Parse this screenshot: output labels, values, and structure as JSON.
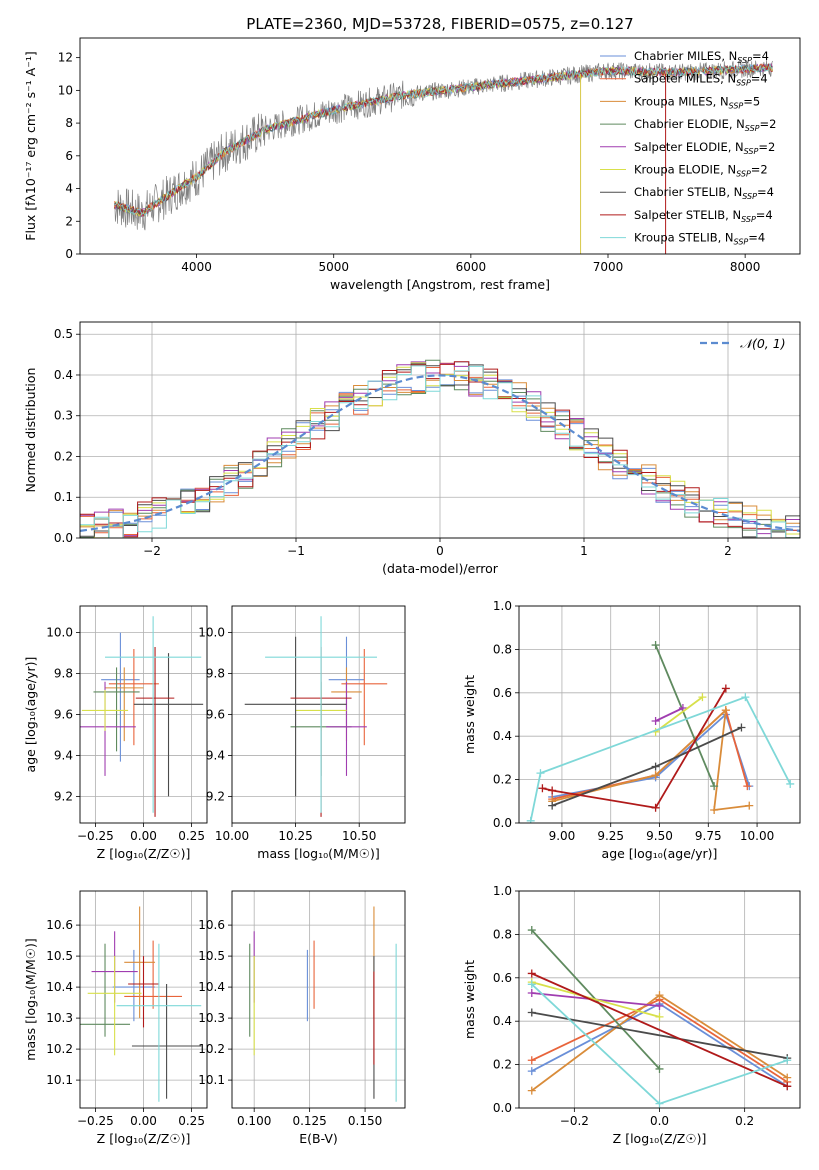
{
  "figure_title": "PLATE=2360, MJD=53728, FIBERID=0575, z=0.127",
  "model_colors": [
    "#6a8fd8",
    "#e8643b",
    "#d98c3a",
    "#5f8a5f",
    "#a03db0",
    "#d8e04a",
    "#4b4b4b",
    "#b01a1a",
    "#7fd8d8"
  ],
  "chart_data": [
    {
      "id": "spectrum",
      "type": "line",
      "xlabel": "wavelength [Angstrom, rest frame]",
      "ylabel": "Flux [fλ10⁻¹⁷ erg cm⁻² s⁻¹ A⁻¹]",
      "xlim": [
        3150,
        8400
      ],
      "ylim": [
        0,
        13.2
      ],
      "xticks": [
        4000,
        5000,
        6000,
        7000,
        8000
      ],
      "yticks": [
        0,
        2,
        4,
        6,
        8,
        10,
        12
      ],
      "grid": false,
      "legend_position": "top-right",
      "legend": [
        "Chabrier MILES, N_SSP=4",
        "Salpeter MILES, N_SSP=4",
        "Kroupa MILES, N_SSP=5",
        "Chabrier ELODIE, N_SSP=2",
        "Salpeter ELODIE, N_SSP=2",
        "Kroupa ELODIE, N_SSP=2",
        "Chabrier STELIB, N_SSP=4",
        "Salpeter STELIB, N_SSP=4",
        "Kroupa STELIB, N_SSP=4"
      ],
      "continuum_x": [
        3400,
        3600,
        3800,
        3900,
        4000,
        4200,
        4500,
        5000,
        5500,
        6000,
        6500,
        7000,
        7500,
        8000,
        8200
      ],
      "continuum_y": [
        3.0,
        2.5,
        3.6,
        4.2,
        4.7,
        6.2,
        7.6,
        8.8,
        9.7,
        10.2,
        10.7,
        11.2,
        11.1,
        11.3,
        11.4
      ]
    },
    {
      "id": "residuals",
      "type": "histogram",
      "xlabel": "(data-model)/error",
      "ylabel": "Normed distribution",
      "xlim": [
        -2.5,
        2.5
      ],
      "ylim": [
        0,
        0.53
      ],
      "xticks": [
        -2,
        -1,
        0,
        1,
        2
      ],
      "yticks": [
        0.0,
        0.1,
        0.2,
        0.3,
        0.4,
        0.5
      ],
      "grid": true,
      "legend_position": "top-right",
      "legend": [
        "𝒩(0, 1)"
      ],
      "bin_width": 0.1
    },
    {
      "id": "age-vs-Z",
      "type": "errorbar",
      "xlabel": "Z [log₁₀(Z/Z☉)]",
      "ylabel": "age  [log₁₀(age/yr)]",
      "xlim": [
        -0.33,
        0.33
      ],
      "ylim": [
        9.07,
        10.13
      ],
      "xticks": [
        -0.25,
        0.0,
        0.25
      ],
      "yticks": [
        9.2,
        9.4,
        9.6,
        9.8,
        10.0
      ],
      "points": [
        {
          "x": -0.12,
          "y": 9.77,
          "xerr": 0.1,
          "y0": 9.37,
          "y1": 10.0
        },
        {
          "x": -0.05,
          "y": 9.75,
          "xerr": 0.13,
          "y0": 9.45,
          "y1": 9.92
        },
        {
          "x": -0.1,
          "y": 9.73,
          "xerr": 0.1,
          "y0": 9.47,
          "y1": 9.83
        },
        {
          "x": -0.14,
          "y": 9.71,
          "xerr": 0.12,
          "y0": 9.42,
          "y1": 9.83
        },
        {
          "x": -0.2,
          "y": 9.54,
          "xerr": 0.16,
          "y0": 9.3,
          "y1": 9.76
        },
        {
          "x": -0.2,
          "y": 9.62,
          "xerr": 0.12,
          "y0": 9.52,
          "y1": 9.72
        },
        {
          "x": 0.13,
          "y": 9.65,
          "xerr": 0.18,
          "y0": 9.2,
          "y1": 9.9
        },
        {
          "x": 0.06,
          "y": 9.68,
          "xerr": 0.1,
          "y0": 9.1,
          "y1": 9.93
        },
        {
          "x": 0.05,
          "y": 9.88,
          "xerr": 0.25,
          "y0": 9.12,
          "y1": 10.08
        }
      ]
    },
    {
      "id": "age-vs-mass",
      "type": "errorbar",
      "xlabel": "mass [log₁₀(M/M☉)]",
      "ylabel": "",
      "xlim": [
        10.0,
        10.68
      ],
      "ylim": [
        9.07,
        10.13
      ],
      "xticks": [
        10.0,
        10.25,
        10.5
      ],
      "yticks": [
        9.2,
        9.4,
        9.6,
        9.8,
        10.0
      ],
      "points": [
        {
          "x": 10.45,
          "y": 9.77,
          "xerr": 0.07,
          "y0": 9.55,
          "y1": 9.98
        },
        {
          "x": 10.52,
          "y": 9.75,
          "xerr": 0.09,
          "y0": 9.45,
          "y1": 9.92
        },
        {
          "x": 10.45,
          "y": 9.71,
          "xerr": 0.06,
          "y0": 9.47,
          "y1": 9.83
        },
        {
          "x": 10.35,
          "y": 9.54,
          "xerr": 0.12,
          "y0": 9.3,
          "y1": 9.76
        },
        {
          "x": 10.45,
          "y": 9.54,
          "xerr": 0.08,
          "y0": 9.3,
          "y1": 9.76
        },
        {
          "x": 10.35,
          "y": 9.62,
          "xerr": 0.1,
          "y0": 9.52,
          "y1": 9.72
        },
        {
          "x": 10.25,
          "y": 9.65,
          "xerr": 0.2,
          "y0": 9.2,
          "y1": 9.98
        },
        {
          "x": 10.35,
          "y": 9.68,
          "xerr": 0.12,
          "y0": 9.1,
          "y1": 9.93
        },
        {
          "x": 10.35,
          "y": 9.88,
          "xerr": 0.22,
          "y0": 9.12,
          "y1": 10.08
        }
      ]
    },
    {
      "id": "mass-weight-vs-age",
      "type": "line",
      "xlabel": "age  [log₁₀(age/yr)]",
      "ylabel": "mass weight",
      "xlim": [
        8.78,
        10.22
      ],
      "ylim": [
        0.0,
        1.0
      ],
      "xticks": [
        9.0,
        9.25,
        9.5,
        9.75,
        10.0
      ],
      "yticks": [
        0.0,
        0.2,
        0.4,
        0.6,
        0.8,
        1.0
      ],
      "grid": true,
      "series": [
        {
          "x": [
            8.95,
            9.48,
            9.84,
            9.96
          ],
          "y": [
            0.12,
            0.21,
            0.5,
            0.17
          ]
        },
        {
          "x": [
            8.95,
            9.48,
            9.84,
            9.95
          ],
          "y": [
            0.11,
            0.22,
            0.52,
            0.17
          ]
        },
        {
          "x": [
            8.95,
            9.48,
            9.84,
            9.78,
            9.96
          ],
          "y": [
            0.1,
            0.22,
            0.52,
            0.06,
            0.08
          ]
        },
        {
          "x": [
            9.48,
            9.78
          ],
          "y": [
            0.82,
            0.17
          ]
        },
        {
          "x": [
            9.48,
            9.62
          ],
          "y": [
            0.47,
            0.53
          ]
        },
        {
          "x": [
            9.48,
            9.72
          ],
          "y": [
            0.42,
            0.58
          ]
        },
        {
          "x": [
            8.95,
            9.48,
            9.92
          ],
          "y": [
            0.08,
            0.26,
            0.44
          ]
        },
        {
          "x": [
            8.9,
            8.95,
            9.48,
            9.84
          ],
          "y": [
            0.16,
            0.15,
            0.07,
            0.62
          ]
        },
        {
          "x": [
            8.84,
            8.89,
            9.94,
            10.17
          ],
          "y": [
            0.01,
            0.23,
            0.58,
            0.18
          ]
        }
      ]
    },
    {
      "id": "mass-vs-Z",
      "type": "errorbar",
      "xlabel": "Z [log₁₀(Z/Z☉)]",
      "ylabel": "mass [log₁₀(M/M☉)]",
      "xlim": [
        -0.33,
        0.33
      ],
      "ylim": [
        10.01,
        10.71
      ],
      "xticks": [
        -0.25,
        0.0,
        0.25
      ],
      "yticks": [
        10.1,
        10.2,
        10.3,
        10.4,
        10.5,
        10.6
      ],
      "points": [
        {
          "x": -0.05,
          "y": 10.4,
          "xerr": 0.11,
          "y0": 10.29,
          "y1": 10.52
        },
        {
          "x": 0.05,
          "y": 10.37,
          "xerr": 0.15,
          "y0": 10.33,
          "y1": 10.55
        },
        {
          "x": -0.02,
          "y": 10.48,
          "xerr": 0.08,
          "y0": 10.3,
          "y1": 10.66
        },
        {
          "x": -0.2,
          "y": 10.28,
          "xerr": 0.13,
          "y0": 10.24,
          "y1": 10.54
        },
        {
          "x": -0.15,
          "y": 10.45,
          "xerr": 0.12,
          "y0": 10.35,
          "y1": 10.58
        },
        {
          "x": -0.15,
          "y": 10.38,
          "xerr": 0.14,
          "y0": 10.18,
          "y1": 10.5
        },
        {
          "x": 0.12,
          "y": 10.21,
          "xerr": 0.18,
          "y0": 10.04,
          "y1": 10.41
        },
        {
          "x": 0.0,
          "y": 10.41,
          "xerr": 0.08,
          "y0": 10.27,
          "y1": 10.5
        },
        {
          "x": 0.08,
          "y": 10.34,
          "xerr": 0.22,
          "y0": 10.03,
          "y1": 10.54
        }
      ]
    },
    {
      "id": "mass-vs-EBV",
      "type": "errorbar",
      "xlabel": "E(B-V)",
      "ylabel": "",
      "xlim": [
        0.09,
        0.168
      ],
      "ylim": [
        10.01,
        10.71
      ],
      "xticks": [
        0.1,
        0.125,
        0.15
      ],
      "yticks": [
        10.1,
        10.2,
        10.3,
        10.4,
        10.5,
        10.6
      ],
      "points": [
        {
          "x": 0.124,
          "y0": 10.29,
          "y1": 10.52
        },
        {
          "x": 0.127,
          "y0": 10.33,
          "y1": 10.55
        },
        {
          "x": 0.154,
          "y0": 10.3,
          "y1": 10.66
        },
        {
          "x": 0.098,
          "y0": 10.24,
          "y1": 10.54
        },
        {
          "x": 0.1,
          "y0": 10.35,
          "y1": 10.58
        },
        {
          "x": 0.1,
          "y0": 10.18,
          "y1": 10.5
        },
        {
          "x": 0.154,
          "y0": 10.04,
          "y1": 10.5
        },
        {
          "x": 0.154,
          "y0": 10.15,
          "y1": 10.45
        },
        {
          "x": 0.164,
          "y0": 10.03,
          "y1": 10.54
        }
      ]
    },
    {
      "id": "mass-weight-vs-Z",
      "type": "line",
      "xlabel": "Z [log₁₀(Z/Z☉)]",
      "ylabel": "mass weight",
      "xlim": [
        -0.33,
        0.33
      ],
      "ylim": [
        0.0,
        1.0
      ],
      "xticks": [
        -0.2,
        0.0,
        0.2
      ],
      "yticks": [
        0.0,
        0.2,
        0.4,
        0.6,
        0.8,
        1.0
      ],
      "grid": true,
      "series": [
        {
          "x": [
            -0.3,
            0.0,
            0.3
          ],
          "y": [
            0.17,
            0.48,
            0.1
          ]
        },
        {
          "x": [
            -0.3,
            0.0,
            0.3
          ],
          "y": [
            0.22,
            0.5,
            0.12
          ]
        },
        {
          "x": [
            -0.3,
            0.0,
            0.3
          ],
          "y": [
            0.08,
            0.52,
            0.14
          ]
        },
        {
          "x": [
            -0.3,
            0.0
          ],
          "y": [
            0.82,
            0.18
          ]
        },
        {
          "x": [
            -0.3,
            0.0
          ],
          "y": [
            0.53,
            0.47
          ]
        },
        {
          "x": [
            -0.3,
            0.0
          ],
          "y": [
            0.58,
            0.42
          ]
        },
        {
          "x": [
            -0.3,
            0.3
          ],
          "y": [
            0.44,
            0.23
          ]
        },
        {
          "x": [
            -0.3,
            0.3
          ],
          "y": [
            0.62,
            0.1
          ]
        },
        {
          "x": [
            -0.3,
            0.0,
            0.3
          ],
          "y": [
            0.57,
            0.02,
            0.22
          ]
        }
      ]
    }
  ]
}
